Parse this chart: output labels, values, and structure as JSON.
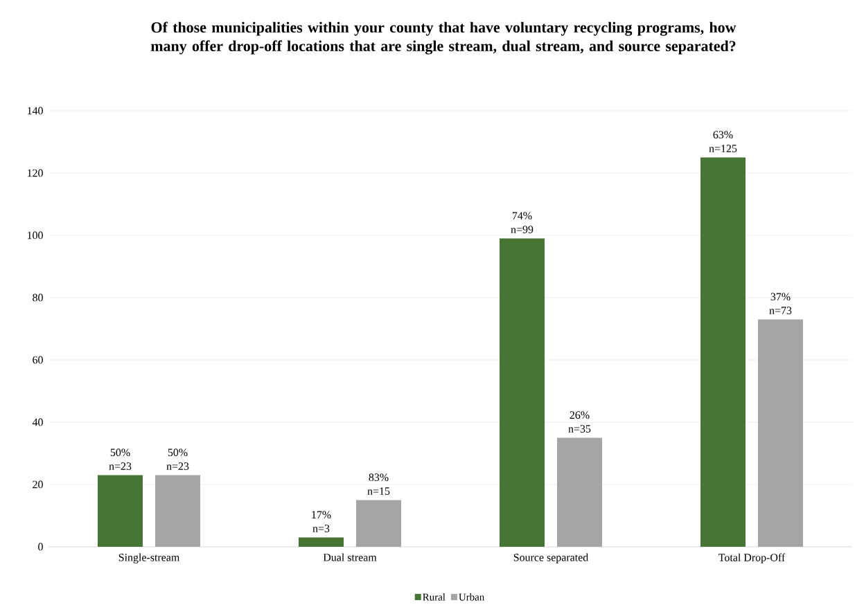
{
  "chart_data": {
    "type": "bar",
    "title": "Of those municipalities within your county that have voluntary recycling programs, how many offer drop-off locations that are single stream, dual stream, and source separated?",
    "categories": [
      "Single-stream",
      "Dual stream",
      "Source separated",
      "Total Drop-Off"
    ],
    "series": [
      {
        "name": "Rural",
        "color": "#467535",
        "values": [
          23,
          3,
          99,
          125
        ],
        "value_labels": [
          "50% n=23",
          "17% n=3",
          "74% n=99",
          "63% n=125"
        ]
      },
      {
        "name": "Urban",
        "color": "#a5a5a5",
        "values": [
          23,
          15,
          35,
          73
        ],
        "value_labels": [
          "50% n=23",
          "83% n=15",
          "26% n=35",
          "37% n=73"
        ]
      }
    ],
    "ylim": [
      0,
      140
    ],
    "yticks": [
      0,
      20,
      40,
      60,
      80,
      100,
      120,
      140
    ],
    "grid": "y",
    "legend": "bottom"
  }
}
